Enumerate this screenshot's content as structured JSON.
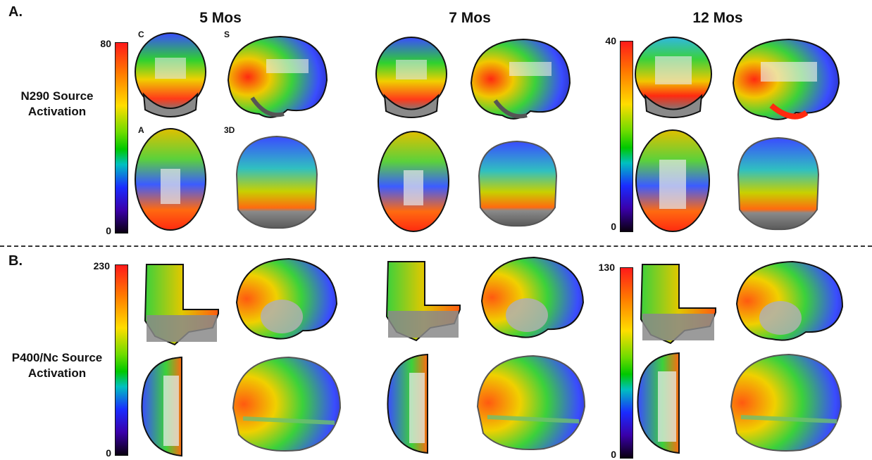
{
  "panel_a": {
    "letter": "A.",
    "row_label_line1": "N290 Source",
    "row_label_line2": "Activation",
    "view_tags": {
      "coronal": "C",
      "sagittal": "S",
      "axial": "A",
      "three_d": "3D"
    },
    "colorbar_left": {
      "max": "80",
      "min": "0"
    },
    "colorbar_right": {
      "max": "40",
      "min": "0"
    }
  },
  "panel_b": {
    "letter": "B.",
    "row_label_line1": "P400/Nc Source",
    "row_label_line2": "Activation",
    "colorbar_left": {
      "max": "230",
      "min": "0"
    },
    "colorbar_right": {
      "max": "130",
      "min": "0"
    }
  },
  "columns": [
    "5 Mos",
    "7 Mos",
    "12 Mos"
  ],
  "colormap": [
    "#0a0010",
    "#3a00aa",
    "#1a2cff",
    "#00c0c0",
    "#00c800",
    "#6fdc00",
    "#ffdd00",
    "#ff7a00",
    "#ff1a1a"
  ]
}
